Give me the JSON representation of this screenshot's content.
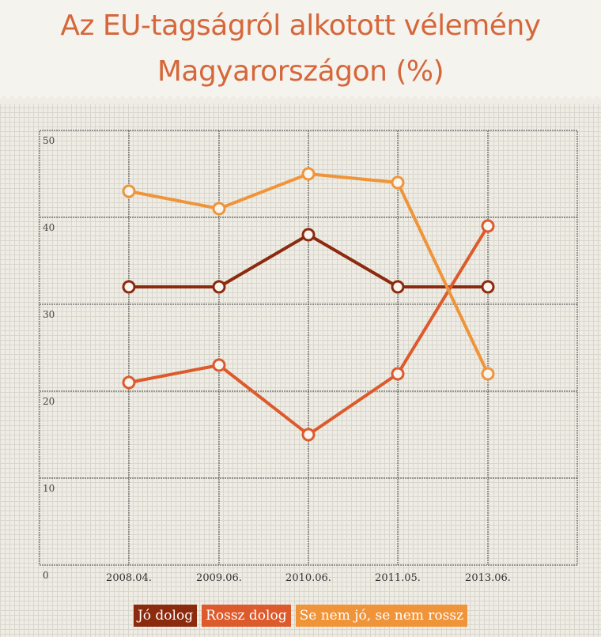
{
  "chart_data": {
    "type": "line",
    "title_line1": "Az EU-tagságról alkotott vélemény",
    "title_line2": "Magyarországon (%)",
    "categories": [
      "2008.04.",
      "2009.06.",
      "2010.06.",
      "2011.05.",
      "2013.06."
    ],
    "ylim": [
      0,
      50
    ],
    "yticks": [
      "0",
      "10",
      "20",
      "30",
      "40",
      "50"
    ],
    "grid": true,
    "legend_position": "bottom",
    "series": [
      {
        "name": "Jó dolog",
        "color": "#8c2a0e",
        "values": [
          32,
          32,
          38,
          32,
          32
        ]
      },
      {
        "name": "Rossz dolog",
        "color": "#dc5a2c",
        "values": [
          21,
          23,
          15,
          22,
          39
        ]
      },
      {
        "name": "Se nem jó, se nem rossz",
        "color": "#f0943a",
        "values": [
          43,
          41,
          45,
          44,
          22
        ]
      }
    ]
  }
}
